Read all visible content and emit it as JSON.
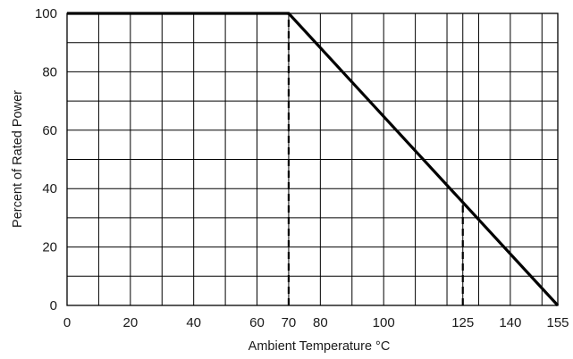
{
  "chart_data": {
    "type": "line",
    "title": "",
    "xlabel": "Ambient Temperature °C",
    "ylabel": "Percent of Rated Power",
    "xlim": [
      0,
      155
    ],
    "ylim": [
      0,
      100
    ],
    "grid": true,
    "legend": "none",
    "x_ticks": [
      0,
      20,
      40,
      60,
      70,
      80,
      100,
      125,
      140,
      155
    ],
    "y_ticks": [
      0,
      20,
      40,
      60,
      80,
      100
    ],
    "x_gridlines": [
      0,
      10,
      20,
      30,
      40,
      50,
      60,
      70,
      80,
      90,
      100,
      110,
      120,
      125,
      130,
      140,
      150,
      155
    ],
    "y_gridlines": [
      0,
      10,
      20,
      30,
      40,
      50,
      60,
      70,
      80,
      90,
      100
    ],
    "series": [
      {
        "x": [
          0,
          70,
          155
        ],
        "y": [
          100,
          100,
          0
        ]
      }
    ],
    "reference_lines": [
      {
        "x": 70,
        "y_from": 0,
        "y_to": 100,
        "style": "dashed"
      },
      {
        "x": 125,
        "y_from": 0,
        "y_to": 35,
        "style": "dashed"
      }
    ]
  },
  "colors": {
    "line": "#000000",
    "grid": "#000000",
    "text": "#1a1a1a",
    "background": "#ffffff"
  }
}
